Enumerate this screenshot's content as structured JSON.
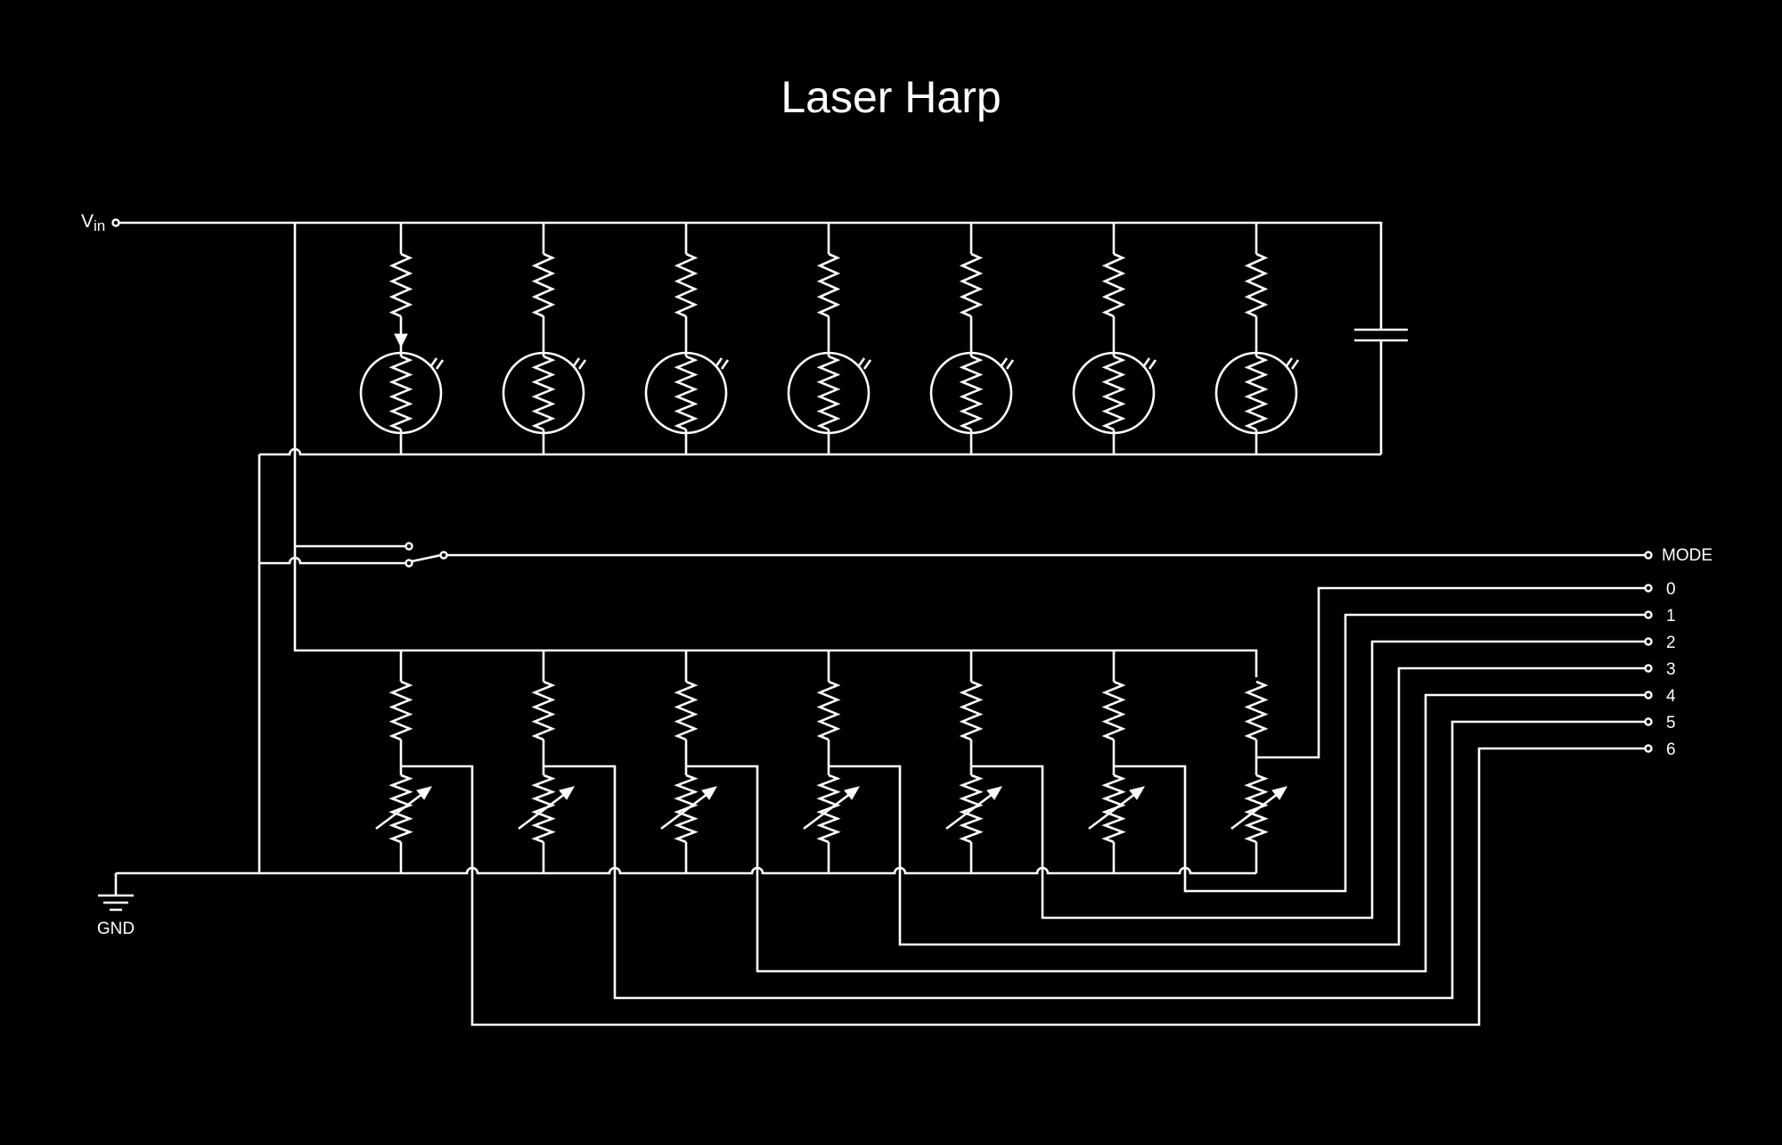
{
  "title": "Laser Harp",
  "labels": {
    "vin_main": "V",
    "vin_sub": "in",
    "gnd": "GND",
    "mode": "MODE",
    "outputs": [
      "0",
      "1",
      "2",
      "3",
      "4",
      "5",
      "6"
    ]
  },
  "colors": {
    "background": "#000000",
    "line": "#ffffff"
  },
  "icons": [
    "resistor-icon",
    "photoresistor-icon",
    "capacitor-icon",
    "variable-resistor-icon",
    "switch-icon",
    "ground-icon",
    "terminal-icon"
  ]
}
